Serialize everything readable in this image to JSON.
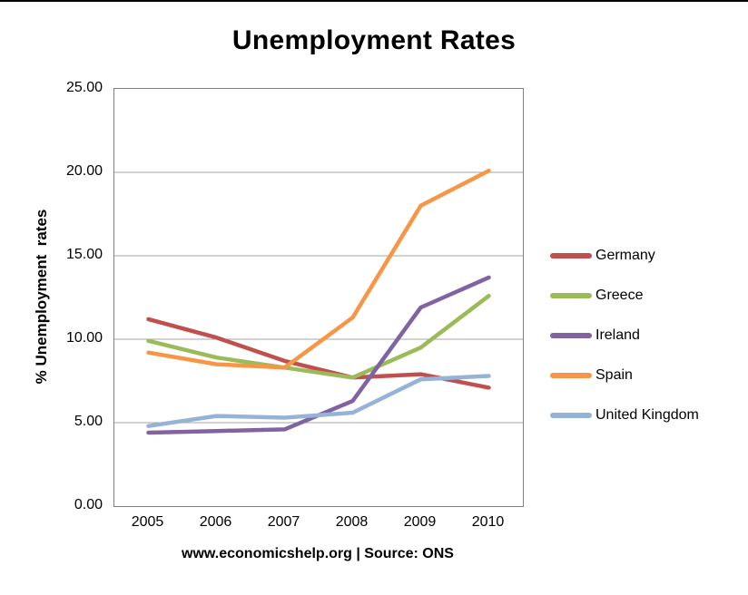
{
  "chart_data": {
    "type": "line",
    "title": "Unemployment Rates",
    "ylabel": "% Unemployment  rates",
    "caption": "www.economicshelp.org | Source: ONS",
    "x": [
      "2005",
      "2006",
      "2007",
      "2008",
      "2009",
      "2010"
    ],
    "ylim": [
      0,
      25
    ],
    "yticks": [
      0,
      5,
      10,
      15,
      20,
      25
    ],
    "ytick_labels": [
      "0.00",
      "5.00",
      "10.00",
      "15.00",
      "20.00",
      "25.00"
    ],
    "grid": true,
    "legend_position": "right",
    "gridline_color": "#A6A6A6",
    "axis_border_color": "#808080",
    "series": [
      {
        "name": "Germany",
        "color": "#C0504D",
        "values": [
          11.2,
          10.1,
          8.7,
          7.7,
          7.9,
          7.1
        ]
      },
      {
        "name": "Greece",
        "color": "#9BBB59",
        "values": [
          9.9,
          8.9,
          8.3,
          7.7,
          9.5,
          12.6
        ]
      },
      {
        "name": "Ireland",
        "color": "#8064A2",
        "values": [
          4.4,
          4.5,
          4.6,
          6.3,
          11.9,
          13.7
        ]
      },
      {
        "name": "Spain",
        "color": "#F79646",
        "values": [
          9.2,
          8.5,
          8.3,
          11.3,
          18.0,
          20.1
        ]
      },
      {
        "name": "United Kingdom",
        "color": "#95B3D7",
        "values": [
          4.8,
          5.4,
          5.3,
          5.6,
          7.6,
          7.8
        ]
      }
    ]
  }
}
